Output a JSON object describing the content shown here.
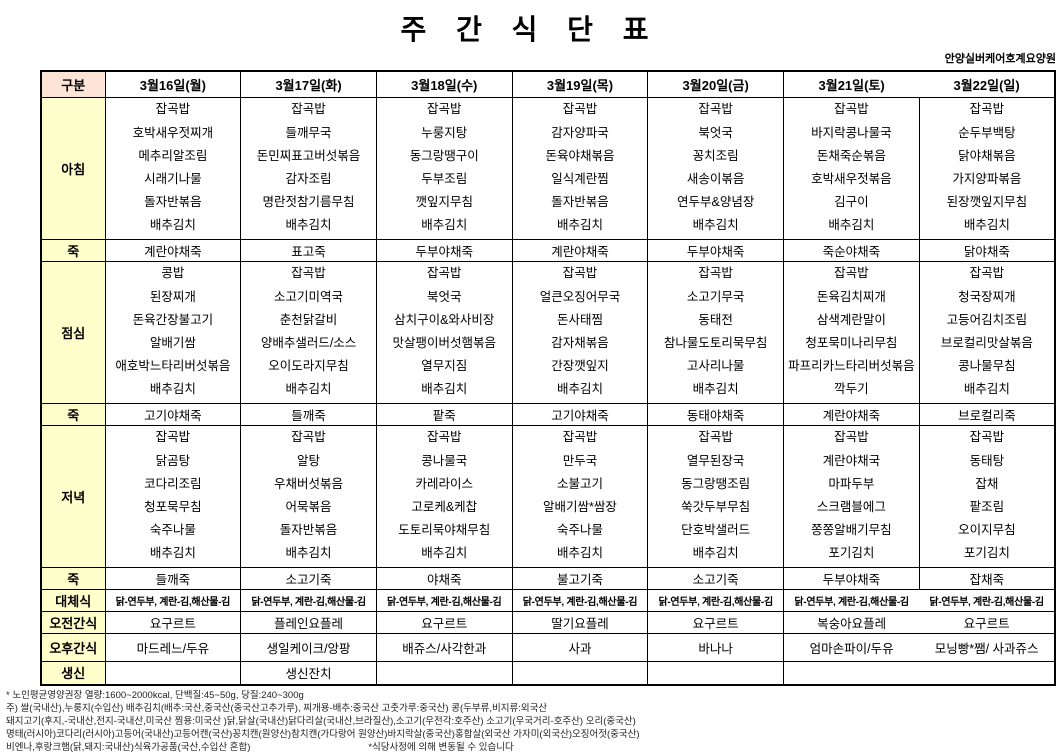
{
  "title": "주 간 식 단 표",
  "facility": "안양실버케어호계요양원",
  "table": {
    "corner_label": "구분",
    "row_labels": {
      "breakfast": "아침",
      "porridge": "죽",
      "lunch": "점심",
      "dinner": "저녁",
      "alternative": "대체식",
      "am_snack": "오전간식",
      "pm_snack": "오후간식",
      "birthday": "생신"
    },
    "days": [
      {
        "date": "3월16일(월)",
        "breakfast": [
          "잡곡밥",
          "호박새우젓찌개",
          "메추리알조림",
          "시래기나물",
          "돌자반볶음",
          "배추김치"
        ],
        "breakfast_porridge": "계란야채죽",
        "lunch": [
          "콩밥",
          "된장찌개",
          "돈육간장불고기",
          "알배기쌈",
          "애호박느타리버섯볶음",
          "배추김치"
        ],
        "lunch_porridge": "고기야채죽",
        "dinner": [
          "잡곡밥",
          "닭곰탕",
          "코다리조림",
          "청포묵무침",
          "숙주나물",
          "배추김치"
        ],
        "dinner_porridge": "들깨죽",
        "alternative": "닭-연두부, 계란-김,해산물-김",
        "am_snack": "요구르트",
        "pm_snack": "마드레느/두유",
        "birthday": ""
      },
      {
        "date": "3월17일(화)",
        "breakfast": [
          "잡곡밥",
          "들깨무국",
          "돈민찌표고버섯볶음",
          "감자조림",
          "명란젓참기름무침",
          "배추김치"
        ],
        "breakfast_porridge": "표고죽",
        "lunch": [
          "잡곡밥",
          "소고기미역국",
          "춘천닭갈비",
          "양배추샐러드/소스",
          "오이도라지무침",
          "배추김치"
        ],
        "lunch_porridge": "들깨죽",
        "dinner": [
          "잡곡밥",
          "알탕",
          "우채버섯볶음",
          "어묵볶음",
          "돌자반볶음",
          "배추김치"
        ],
        "dinner_porridge": "소고기죽",
        "alternative": "닭-연두부, 계란-김,해산물-김",
        "am_snack": "플레인요플레",
        "pm_snack": "생일케이크/앙팡",
        "birthday": "생신잔치"
      },
      {
        "date": "3월18일(수)",
        "breakfast": [
          "잡곡밥",
          "누룽지탕",
          "동그랑땡구이",
          "두부조림",
          "깻잎지무침",
          "배추김치"
        ],
        "breakfast_porridge": "두부야채죽",
        "lunch": [
          "잡곡밥",
          "북엇국",
          "삼치구이&와사비장",
          "맛살팽이버섯햄볶음",
          "열무지짐",
          "배추김치"
        ],
        "lunch_porridge": "팥죽",
        "dinner": [
          "잡곡밥",
          "콩나물국",
          "카레라이스",
          "고로케&케찹",
          "도토리묵야채무침",
          "배추김치"
        ],
        "dinner_porridge": "야채죽",
        "alternative": "닭-연두부, 계란-김,해산물-김",
        "am_snack": "요구르트",
        "pm_snack": "배쥬스/사각한과",
        "birthday": ""
      },
      {
        "date": "3월19일(목)",
        "breakfast": [
          "잡곡밥",
          "감자양파국",
          "돈육야채볶음",
          "일식계란찜",
          "돌자반볶음",
          "배추김치"
        ],
        "breakfast_porridge": "계란야채죽",
        "lunch": [
          "잡곡밥",
          "얼큰오징어무국",
          "돈사태찜",
          "감자채볶음",
          "간장깻잎지",
          "배추김치"
        ],
        "lunch_porridge": "고기야채죽",
        "dinner": [
          "잡곡밥",
          "만두국",
          "소불고기",
          "알배기쌈*쌈장",
          "숙주나물",
          "배추김치"
        ],
        "dinner_porridge": "불고기죽",
        "alternative": "닭-연두부, 계란-김,해산물-김",
        "am_snack": "딸기요플레",
        "pm_snack": "사과",
        "birthday": ""
      },
      {
        "date": "3월20일(금)",
        "breakfast": [
          "잡곡밥",
          "북엇국",
          "꽁치조림",
          "새송이볶음",
          "연두부&양념장",
          "배추김치"
        ],
        "breakfast_porridge": "두부야채죽",
        "lunch": [
          "잡곡밥",
          "소고기무국",
          "동태전",
          "참나물도토리묵무침",
          "고사리나물",
          "배추김치"
        ],
        "lunch_porridge": "동태야채죽",
        "dinner": [
          "잡곡밥",
          "열무된장국",
          "동그랑땡조림",
          "쑥갓두부무침",
          "단호박샐러드",
          "배추김치"
        ],
        "dinner_porridge": "소고기죽",
        "alternative": "닭-연두부, 계란-김,해산물-김",
        "am_snack": "요구르트",
        "pm_snack": "바나나",
        "birthday": ""
      },
      {
        "date": "3월21일(토)",
        "breakfast": [
          "잡곡밥",
          "바지락콩나물국",
          "돈채죽순볶음",
          "호박새우젓볶음",
          "김구이",
          "배추김치"
        ],
        "breakfast_porridge": "죽순야채죽",
        "lunch": [
          "잡곡밥",
          "돈육김치찌개",
          "삼색계란말이",
          "청포묵미나리무침",
          "파프리카느타리버섯볶음",
          "깍두기"
        ],
        "lunch_porridge": "계란야채죽",
        "dinner": [
          "잡곡밥",
          "계란야채국",
          "마파두부",
          "스크램블에그",
          "쫑쫑알배기무침",
          "포기김치"
        ],
        "dinner_porridge": "두부야채죽",
        "alternative": "닭-연두부, 계란-김,해산물-김",
        "am_snack": "복숭아요플레",
        "pm_snack": "엄마손파이/두유",
        "birthday": ""
      },
      {
        "date": "3월22일(일)",
        "breakfast": [
          "잡곡밥",
          "순두부백탕",
          "닭야채볶음",
          "가지양파볶음",
          "된장깻잎지무침",
          "배추김치"
        ],
        "breakfast_porridge": "닭야채죽",
        "lunch": [
          "잡곡밥",
          "청국장찌개",
          "고등어김치조림",
          "브로컬리맛살볶음",
          "콩나물무침",
          "배추김치"
        ],
        "lunch_porridge": "브로컬리죽",
        "dinner": [
          "잡곡밥",
          "동태탕",
          "잡채",
          "팥조림",
          "오이지무침",
          "포기김치"
        ],
        "dinner_porridge": "잡채죽",
        "alternative": "닭-연두부, 계란-김,해산물-김",
        "am_snack": "요구르트",
        "pm_snack": "모닝빵*쨈/ 사과쥬스",
        "birthday": ""
      }
    ]
  },
  "footer": {
    "lines": [
      "* 노인평균영양권장  열량:1600~2000kcal, 단백질:45~50g, 당질:240~300g",
      "주) 쌀(국내산),누룽지(수입산) 배추김치(배추:국산,중국산(중국산고추가루), 찌개용-배추:중국산 고춧가루:중국산) 콩(두부류,비지류:외국산",
      "돼지고기(후지,-국내산,전지-국내산,미국산 찜용:미국산 )닭,닭살(국내산)닭다리살(국내산,브라질산),소고기(우전각:호주산) 소고기(우국거리-호주산) 오리(중국산)",
      "명태(러시아)코다리(러시아)고등어(국내산)고등어캔(국산)꽁치캔(원양산)참치캔(가다랑어 원양산)바지락살(중국산)홍합살(외국산 가자미(외국산)오징어젓(중국산)"
    ],
    "last_left": "비엔나,후랑크햄(닭,돼지:국내산)식육가공품(국산,수입산 혼합)",
    "notice": "*식당사정에 의해 변동될 수 있습니다"
  },
  "colors": {
    "corner_bg": "#fce4d6",
    "row_label_bg": "#ffffcc",
    "border": "#000000"
  }
}
